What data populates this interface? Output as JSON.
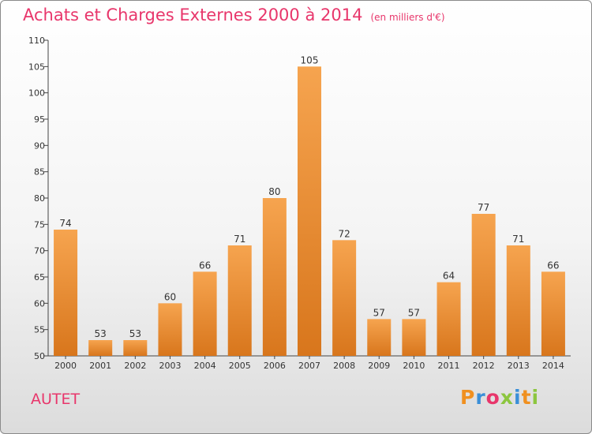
{
  "title": "Achats et Charges Externes 2000 à 2014",
  "unit_note": "(en milliers d'€)",
  "commune": "AUTET",
  "logo": "Proxiti",
  "colors": {
    "title": "#e8366b",
    "bar_light": "#f6a44f",
    "bar_dark": "#d8761c",
    "logo_letters": [
      "#f09020",
      "#3a8fd8",
      "#e8366b",
      "#8cc63f",
      "#3a8fd8",
      "#f09020",
      "#8cc63f"
    ]
  },
  "chart_data": {
    "type": "bar",
    "title": "Achats et Charges Externes 2000 à 2014",
    "subtitle": "(en milliers d'€)",
    "categories": [
      "2000",
      "2001",
      "2002",
      "2003",
      "2004",
      "2005",
      "2006",
      "2007",
      "2008",
      "2009",
      "2010",
      "2011",
      "2012",
      "2013",
      "2014"
    ],
    "values": [
      74,
      53,
      53,
      60,
      66,
      71,
      80,
      105,
      72,
      57,
      57,
      64,
      77,
      71,
      66
    ],
    "ylim": [
      50,
      110
    ],
    "yticks": [
      50,
      55,
      60,
      65,
      70,
      75,
      80,
      85,
      90,
      95,
      100,
      105,
      110
    ],
    "grid": false,
    "xlabel": "",
    "ylabel": ""
  }
}
